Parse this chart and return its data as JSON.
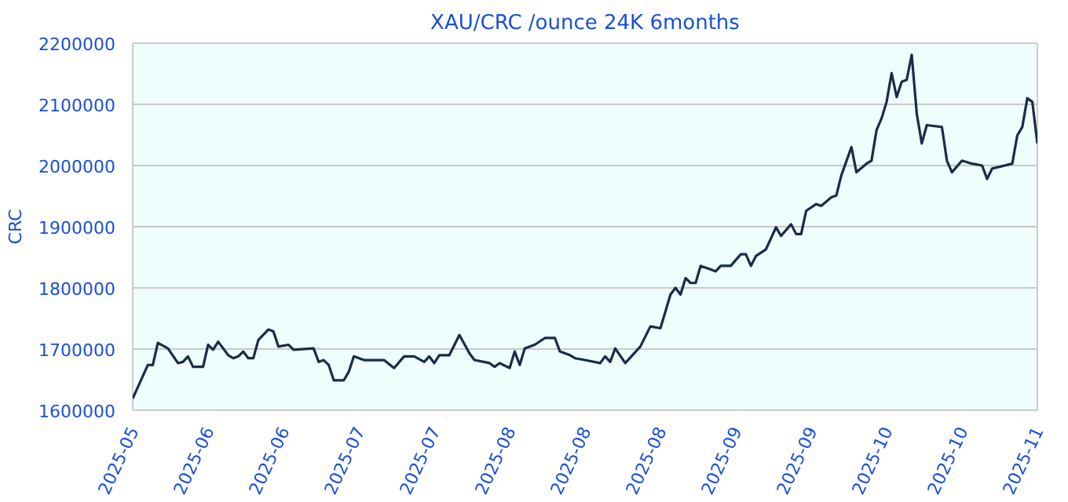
{
  "chart_data": {
    "type": "line",
    "title": "XAU/CRC /ounce 24K 6months",
    "ylabel": "CRC",
    "series": [
      {
        "color": "#1a2b4a",
        "x": [
          "2025-05-01",
          "2025-05-04",
          "2025-05-05",
          "2025-05-06",
          "2025-05-08",
          "2025-05-10",
          "2025-05-11",
          "2025-05-12",
          "2025-05-13",
          "2025-05-15",
          "2025-05-16",
          "2025-05-17",
          "2025-05-18",
          "2025-05-20",
          "2025-05-21",
          "2025-05-22",
          "2025-05-23",
          "2025-05-24",
          "2025-05-25",
          "2025-05-26",
          "2025-05-28",
          "2025-05-29",
          "2025-05-30",
          "2025-06-01",
          "2025-06-02",
          "2025-06-06",
          "2025-06-07",
          "2025-06-08",
          "2025-06-09",
          "2025-06-10",
          "2025-06-12",
          "2025-06-13",
          "2025-06-14",
          "2025-06-16",
          "2025-06-20",
          "2025-06-22",
          "2025-06-24",
          "2025-06-26",
          "2025-06-28",
          "2025-06-29",
          "2025-06-30",
          "2025-07-01",
          "2025-07-03",
          "2025-07-05",
          "2025-07-07",
          "2025-07-08",
          "2025-07-11",
          "2025-07-12",
          "2025-07-13",
          "2025-07-15",
          "2025-07-16",
          "2025-07-17",
          "2025-07-18",
          "2025-07-20",
          "2025-07-22",
          "2025-07-24",
          "2025-07-25",
          "2025-07-27",
          "2025-07-28",
          "2025-07-30",
          "2025-08-02",
          "2025-08-03",
          "2025-08-04",
          "2025-08-05",
          "2025-08-07",
          "2025-08-10",
          "2025-08-12",
          "2025-08-14",
          "2025-08-16",
          "2025-08-17",
          "2025-08-18",
          "2025-08-19",
          "2025-08-20",
          "2025-08-21",
          "2025-08-22",
          "2025-08-24",
          "2025-08-25",
          "2025-08-26",
          "2025-08-28",
          "2025-08-30",
          "2025-08-31",
          "2025-09-01",
          "2025-09-02",
          "2025-09-04",
          "2025-09-06",
          "2025-09-07",
          "2025-09-09",
          "2025-09-10",
          "2025-09-11",
          "2025-09-12",
          "2025-09-14",
          "2025-09-15",
          "2025-09-17",
          "2025-09-18",
          "2025-09-19",
          "2025-09-21",
          "2025-09-22",
          "2025-09-24",
          "2025-09-25",
          "2025-09-26",
          "2025-09-27",
          "2025-09-28",
          "2025-09-29",
          "2025-09-30",
          "2025-10-01",
          "2025-10-02",
          "2025-10-03",
          "2025-10-04",
          "2025-10-05",
          "2025-10-06",
          "2025-10-09",
          "2025-10-10",
          "2025-10-11",
          "2025-10-13",
          "2025-10-15",
          "2025-10-17",
          "2025-10-18",
          "2025-10-19",
          "2025-10-23",
          "2025-10-24",
          "2025-10-25",
          "2025-10-26",
          "2025-10-27",
          "2025-10-28"
        ],
        "values": [
          1619000,
          1674000,
          1674000,
          1710000,
          1701000,
          1677000,
          1679000,
          1688000,
          1671000,
          1671000,
          1707000,
          1699000,
          1712000,
          1690000,
          1685000,
          1688000,
          1696000,
          1685000,
          1685000,
          1715000,
          1732000,
          1729000,
          1704000,
          1707000,
          1699000,
          1701000,
          1679000,
          1682000,
          1674000,
          1649000,
          1649000,
          1663000,
          1688000,
          1682000,
          1682000,
          1669000,
          1688000,
          1688000,
          1679000,
          1688000,
          1677000,
          1690000,
          1690000,
          1723000,
          1693000,
          1682000,
          1677000,
          1671000,
          1677000,
          1669000,
          1696000,
          1674000,
          1701000,
          1707000,
          1718000,
          1718000,
          1696000,
          1690000,
          1685000,
          1682000,
          1677000,
          1688000,
          1679000,
          1701000,
          1677000,
          1704000,
          1737000,
          1734000,
          1789000,
          1800000,
          1789000,
          1816000,
          1808000,
          1808000,
          1836000,
          1830000,
          1827000,
          1836000,
          1836000,
          1855000,
          1855000,
          1836000,
          1852000,
          1863000,
          1899000,
          1885000,
          1904000,
          1888000,
          1888000,
          1926000,
          1937000,
          1934000,
          1948000,
          1951000,
          1984000,
          2030000,
          1989000,
          2003000,
          2008000,
          2058000,
          2077000,
          2104000,
          2151000,
          2112000,
          2137000,
          2140000,
          2181000,
          2085000,
          2036000,
          2066000,
          2063000,
          2008000,
          1989000,
          2008000,
          2003000,
          2000000,
          1978000,
          1995000,
          2003000,
          2049000,
          2063000,
          2110000,
          2104000,
          2036000
        ]
      }
    ],
    "xlim": [
      "2025-05-01",
      "2025-10-28"
    ],
    "xticks": [
      {
        "value": "2025-05-01",
        "label": "2025-05"
      },
      {
        "value": "2025-05-16",
        "label": "2025-06"
      },
      {
        "value": "2025-05-31",
        "label": "2025-06"
      },
      {
        "value": "2025-06-15",
        "label": "2025-07"
      },
      {
        "value": "2025-06-30",
        "label": "2025-07"
      },
      {
        "value": "2025-07-15",
        "label": "2025-08"
      },
      {
        "value": "2025-07-30",
        "label": "2025-08"
      },
      {
        "value": "2025-08-14",
        "label": "2025-08"
      },
      {
        "value": "2025-08-29",
        "label": "2025-09"
      },
      {
        "value": "2025-09-13",
        "label": "2025-09"
      },
      {
        "value": "2025-09-28",
        "label": "2025-10"
      },
      {
        "value": "2025-10-13",
        "label": "2025-10"
      },
      {
        "value": "2025-10-28",
        "label": "2025-11"
      }
    ],
    "ylim": [
      1600000,
      2200000
    ],
    "yticks": [
      1600000,
      1700000,
      1800000,
      1900000,
      2000000,
      2100000,
      2200000
    ],
    "grid": "y",
    "marker": "none",
    "line_style": "solid"
  }
}
